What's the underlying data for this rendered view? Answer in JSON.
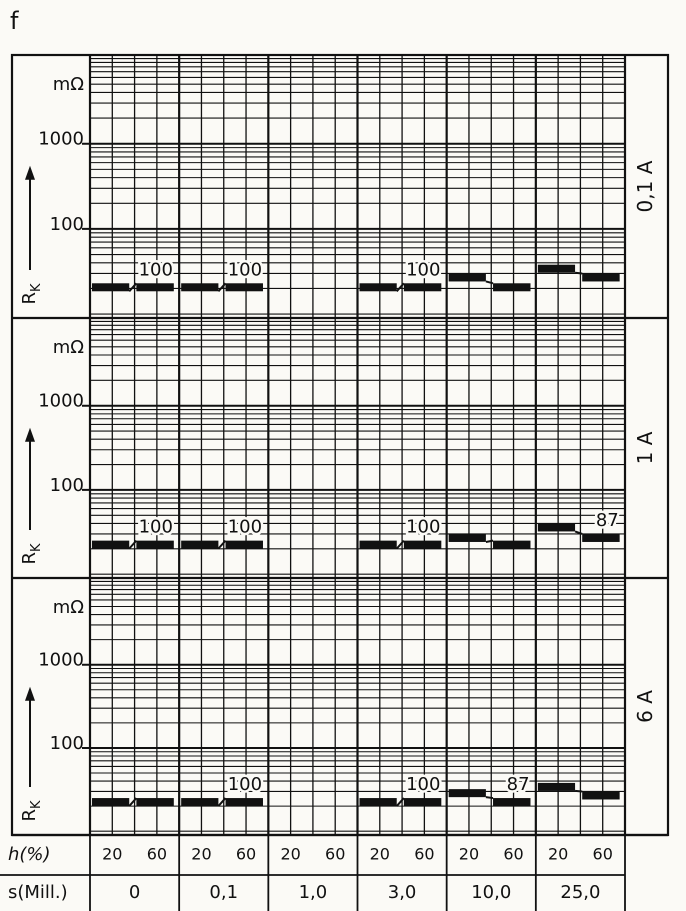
{
  "title": "f",
  "x_axis": {
    "h_label": "h(%)",
    "h_ticks": [
      20,
      60
    ],
    "s_label": "s(Mill.)",
    "categories": [
      "0",
      "0,1",
      "1,0",
      "3,0",
      "10,0",
      "25,0"
    ]
  },
  "chart_data": [
    {
      "type": "bar",
      "panel_label": "0,1 A",
      "y_unit": "mΩ",
      "y_label": "R",
      "y_label_sub": "K",
      "log_y": true,
      "grid": true,
      "color": "#111111",
      "ylim": [
        9,
        11000
      ],
      "yticks": [
        100,
        1000
      ],
      "values": [
        [
          23,
          23
        ],
        [
          23,
          23
        ],
        [
          null,
          null
        ],
        [
          23,
          23
        ],
        [
          30,
          23
        ],
        [
          38,
          30
        ]
      ],
      "annotations": [
        100,
        100,
        null,
        100,
        null,
        null
      ]
    },
    {
      "type": "bar",
      "panel_label": "1 A",
      "y_unit": "mΩ",
      "y_label": "R",
      "y_label_sub": "K",
      "log_y": true,
      "grid": true,
      "color": "#111111",
      "ylim": [
        9,
        11000
      ],
      "yticks": [
        100,
        1000
      ],
      "values": [
        [
          25,
          25
        ],
        [
          25,
          25
        ],
        [
          null,
          null
        ],
        [
          25,
          25
        ],
        [
          30,
          25
        ],
        [
          40,
          30
        ]
      ],
      "annotations": [
        100,
        100,
        null,
        100,
        null,
        87
      ]
    },
    {
      "type": "bar",
      "panel_label": "6 A",
      "y_unit": "mΩ",
      "y_label": "R",
      "y_label_sub": "K",
      "log_y": true,
      "grid": true,
      "color": "#111111",
      "ylim": [
        9,
        11000
      ],
      "yticks": [
        100,
        1000
      ],
      "values": [
        [
          25,
          25
        ],
        [
          25,
          25
        ],
        [
          null,
          null
        ],
        [
          25,
          25
        ],
        [
          32,
          25
        ],
        [
          38,
          30
        ]
      ],
      "annotations": [
        null,
        100,
        null,
        100,
        87,
        null
      ]
    }
  ]
}
